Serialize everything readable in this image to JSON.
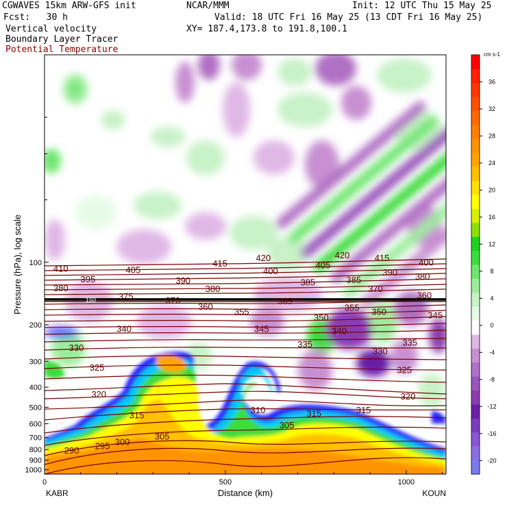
{
  "header": {
    "model": "CGWAVES 15km ARW-GFS init",
    "center": "NCAR/MMM",
    "init": "Init: 12 UTC Thu 15 May 25",
    "fcst": "Fcst:   30 h",
    "valid": "Valid: 18 UTC Fri 16 May 25 (13 CDT Fri 16 May 25)",
    "field1": "Vertical velocity",
    "field2": "Boundary Layer Tracer",
    "field3": "Potential Temperature",
    "xy": "XY= 187.4,173.8 to 191.8,100.1"
  },
  "colors": {
    "contour": "#7a0000",
    "tropopause": "#000000",
    "field3_label": "#8b1a1a"
  },
  "chart_data": {
    "type": "heatmap",
    "title": "Vertical velocity",
    "xlabel": "Distance (km)",
    "ylabel": "Pressure (hPa), log scale",
    "xlim": [
      0,
      1110
    ],
    "ylim": [
      1050,
      10
    ],
    "y_scale": "log",
    "x_ticks": [
      0,
      500,
      1000
    ],
    "y_ticks": [
      100,
      200,
      300,
      400,
      500,
      600,
      700,
      800,
      900,
      1000
    ],
    "x_endpoints": [
      "KABR",
      "KOUN"
    ],
    "colorbar": {
      "unit": "cm s-1",
      "ticks": [
        36,
        32,
        28,
        24,
        20,
        16,
        12,
        8,
        4,
        0,
        -4,
        -8,
        -12,
        -16,
        -20
      ],
      "levels": [
        -22,
        -20,
        -18,
        -16,
        -14,
        -12,
        -10,
        -8,
        -6,
        -4,
        -2,
        2,
        4,
        6,
        8,
        10,
        12,
        14,
        16,
        18,
        20,
        22,
        24,
        26,
        28,
        30,
        32,
        34,
        36,
        38,
        40
      ],
      "colors": [
        "#7b7bf0",
        "#8a6ee6",
        "#8a55d6",
        "#7a3cc0",
        "#6a1fa6",
        "#8a3cb0",
        "#9a55bb",
        "#b070c4",
        "#c890d2",
        "#e0b8e6",
        "#ffffff",
        "#e6fbe6",
        "#c8f2c8",
        "#9cec9c",
        "#6ee66e",
        "#3cdc3c",
        "#1ed21e",
        "#90e000",
        "#d8f000",
        "#ffff00",
        "#ffe000",
        "#ffc000",
        "#ffa500",
        "#ff9400",
        "#ff8000",
        "#ff6a00",
        "#ff5000",
        "#ff3800",
        "#ff2000",
        "#ff0000"
      ]
    },
    "theta_contours": [
      {
        "value": 290,
        "label_x": 75,
        "label_p": 830
      },
      {
        "value": 295,
        "label_x": 160,
        "label_p": 790
      },
      {
        "value": 300,
        "label_x": 215,
        "label_p": 755
      },
      {
        "value": 305,
        "label_x": 325,
        "label_p": 710
      },
      {
        "value": 305,
        "label_x": 670,
        "label_p": 625
      },
      {
        "value": 310,
        "label_x": 590,
        "label_p": 530
      },
      {
        "value": 315,
        "label_x": 255,
        "label_p": 560
      },
      {
        "value": 315,
        "label_x": 745,
        "label_p": 550
      },
      {
        "value": 315,
        "label_x": 882,
        "label_p": 530
      },
      {
        "value": 320,
        "label_x": 150,
        "label_p": 445
      },
      {
        "value": 320,
        "label_x": 1005,
        "label_p": 455
      },
      {
        "value": 325,
        "label_x": 145,
        "label_p": 330
      },
      {
        "value": 325,
        "label_x": 995,
        "label_p": 340
      },
      {
        "value": 330,
        "label_x": 88,
        "label_p": 265
      },
      {
        "value": 330,
        "label_x": 928,
        "label_p": 275
      },
      {
        "value": 335,
        "label_x": 720,
        "label_p": 255
      },
      {
        "value": 335,
        "label_x": 1010,
        "label_p": 250
      },
      {
        "value": 340,
        "label_x": 220,
        "label_p": 215
      },
      {
        "value": 340,
        "label_x": 815,
        "label_p": 220
      },
      {
        "value": 345,
        "label_x": 600,
        "label_p": 215
      },
      {
        "value": 345,
        "label_x": 1080,
        "label_p": 185
      },
      {
        "value": 350,
        "label_x": 765,
        "label_p": 190
      },
      {
        "value": 350,
        "label_x": 925,
        "label_p": 178
      },
      {
        "value": 355,
        "label_x": 545,
        "label_p": 178
      },
      {
        "value": 355,
        "label_x": 850,
        "label_p": 170
      },
      {
        "value": 360,
        "label_x": 445,
        "label_p": 168
      },
      {
        "value": 360,
        "label_x": 1050,
        "label_p": 148
      },
      {
        "value": 365,
        "label_x": 665,
        "label_p": 158
      },
      {
        "value": 370,
        "label_x": 355,
        "label_p": 157
      },
      {
        "value": 370,
        "label_x": 915,
        "label_p": 138
      },
      {
        "value": 375,
        "label_x": 225,
        "label_p": 150
      },
      {
        "value": 380,
        "label_x": 45,
        "label_p": 137
      },
      {
        "value": 380,
        "label_x": 465,
        "label_p": 138
      },
      {
        "value": 380,
        "label_x": 1045,
        "label_p": 120
      },
      {
        "value": 385,
        "label_x": 728,
        "label_p": 128
      },
      {
        "value": 385,
        "label_x": 855,
        "label_p": 125
      },
      {
        "value": 390,
        "label_x": 383,
        "label_p": 126
      },
      {
        "value": 390,
        "label_x": 955,
        "label_p": 115
      },
      {
        "value": 395,
        "label_x": 120,
        "label_p": 124
      },
      {
        "value": 400,
        "label_x": 625,
        "label_p": 113
      },
      {
        "value": 400,
        "label_x": 1055,
        "label_p": 103
      },
      {
        "value": 405,
        "label_x": 245,
        "label_p": 112
      },
      {
        "value": 405,
        "label_x": 770,
        "label_p": 106
      },
      {
        "value": 410,
        "label_x": 45,
        "label_p": 110
      },
      {
        "value": 415,
        "label_x": 485,
        "label_p": 104
      },
      {
        "value": 415,
        "label_x": 933,
        "label_p": 98
      },
      {
        "value": 420,
        "label_x": 605,
        "label_p": 98
      },
      {
        "value": 420,
        "label_x": 823,
        "label_p": 95
      }
    ],
    "tropopause_label": "150",
    "tropopause_p": 150
  }
}
